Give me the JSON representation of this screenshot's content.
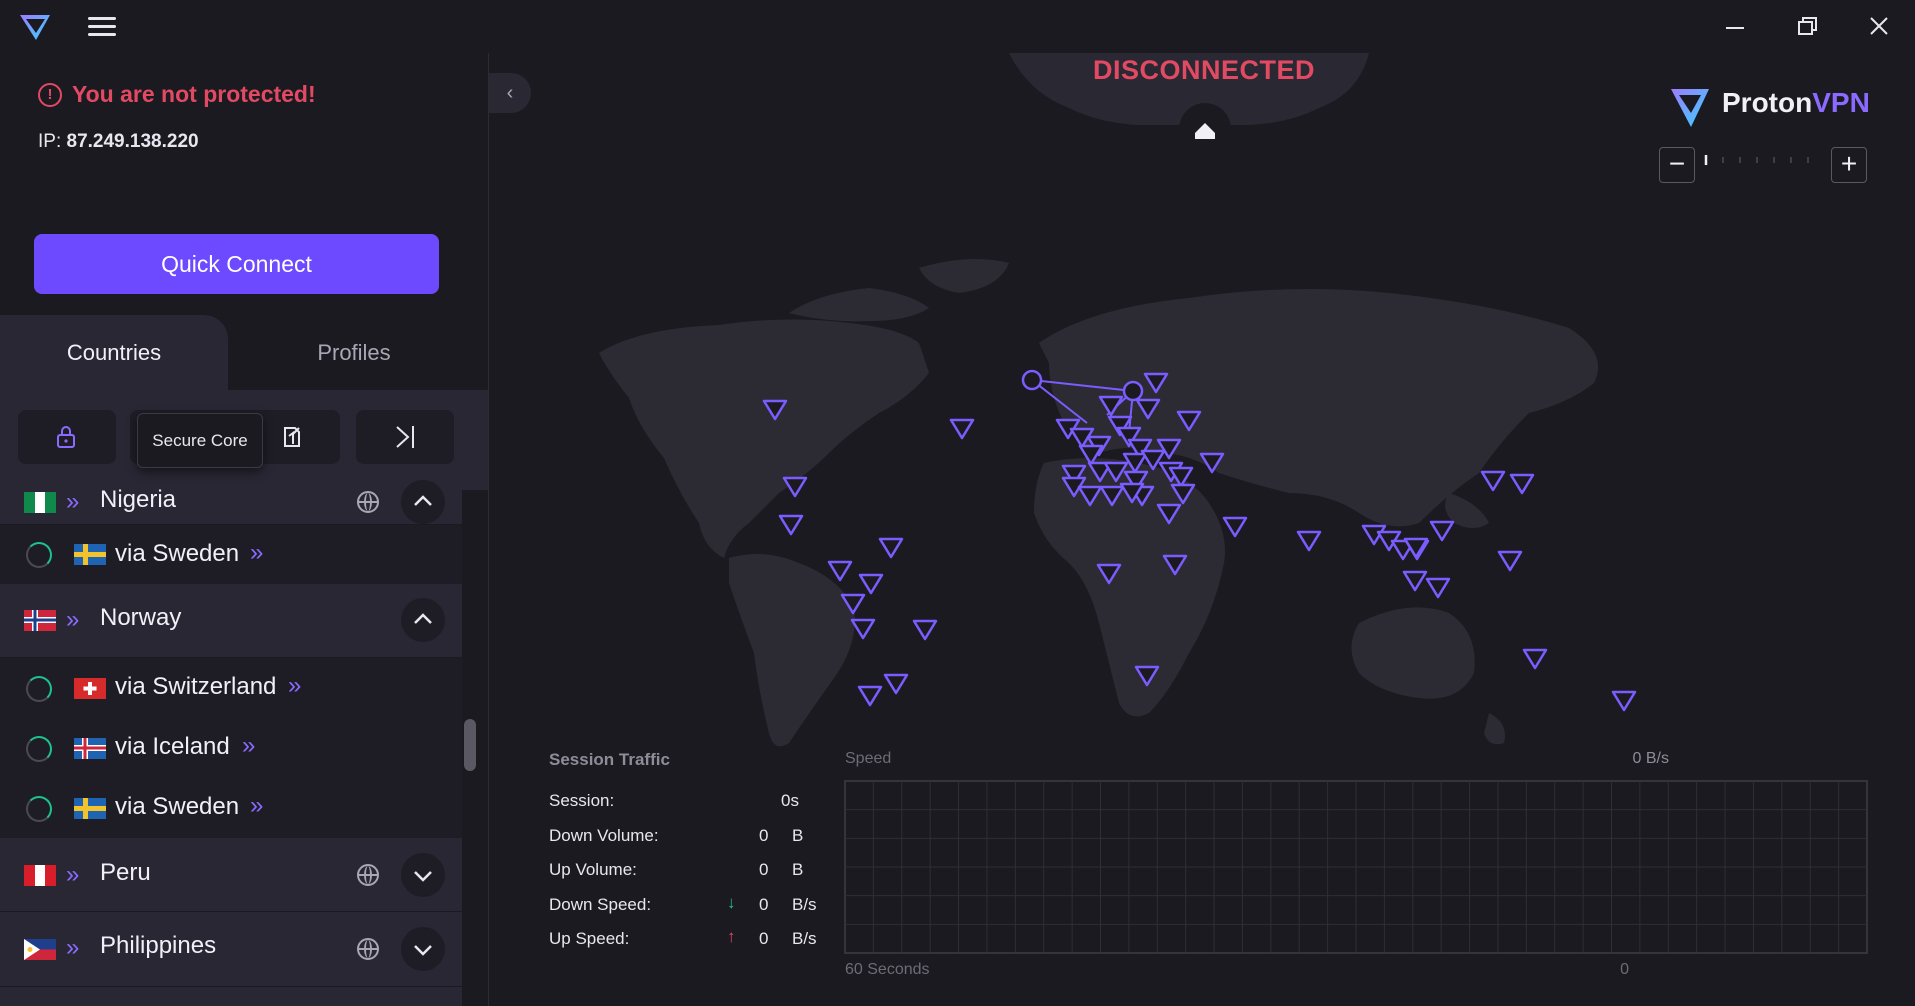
{
  "app": {
    "name": "ProtonVPN",
    "brand_a": "Proton",
    "brand_b": "VPN",
    "accent": "#6d4aff",
    "danger": "#e24a63"
  },
  "status": {
    "state": "DISCONNECTED",
    "warning": "You are not protected!",
    "ip_label": "IP:",
    "ip_value": "87.249.138.220"
  },
  "quick_connect": {
    "label": "Quick Connect"
  },
  "tabs": [
    {
      "label": "Countries",
      "active": true
    },
    {
      "label": "Profiles",
      "active": false
    }
  ],
  "filters": {
    "tooltip": "Secure Core",
    "icons": [
      "lock-icon",
      "secure-core-icon",
      "p2p-icon",
      "tor-icon"
    ]
  },
  "countries": [
    {
      "name": "Nigeria",
      "expanded": true,
      "servers": [
        {
          "label": "via Sweden"
        }
      ]
    },
    {
      "name": "Norway",
      "expanded": true,
      "servers": [
        {
          "label": "via Switzerland"
        },
        {
          "label": "via Iceland"
        },
        {
          "label": "via Sweden"
        }
      ]
    },
    {
      "name": "Peru",
      "expanded": false
    },
    {
      "name": "Philippines",
      "expanded": false
    }
  ],
  "traffic": {
    "title": "Session Traffic",
    "session_label": "Session:",
    "session_value": "0s",
    "down_volume_label": "Down Volume:",
    "down_volume_value": "0",
    "down_volume_unit": "B",
    "up_volume_label": "Up Volume:",
    "up_volume_value": "0",
    "up_volume_unit": "B",
    "down_speed_label": "Down Speed:",
    "down_speed_value": "0",
    "down_speed_unit": "B/s",
    "up_speed_label": "Up Speed:",
    "up_speed_value": "0",
    "up_speed_unit": "B/s"
  },
  "speed_graph": {
    "label": "Speed",
    "current": "0 B/s",
    "x_start": "60 Seconds",
    "x_end": "0"
  },
  "zoom": {
    "level": 0
  }
}
